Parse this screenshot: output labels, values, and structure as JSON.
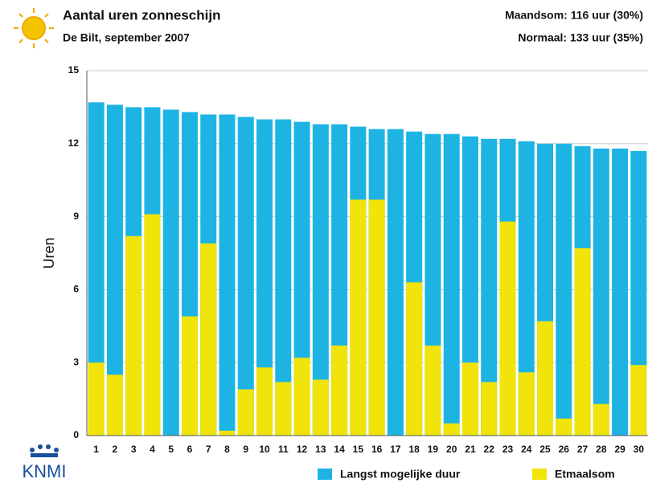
{
  "chart_data": {
    "type": "bar",
    "barmode": "overlay",
    "title": "Aantal uren zonneschijn",
    "subtitle": "De Bilt, september 2007",
    "annotations": [
      "Maandsom: 116 uur (30%)",
      "Normaal: 133 uur (35%)"
    ],
    "ylabel": "Uren",
    "logo": "KNMI",
    "categories": [
      "1",
      "2",
      "3",
      "4",
      "5",
      "6",
      "7",
      "8",
      "9",
      "10",
      "11",
      "12",
      "13",
      "14",
      "15",
      "16",
      "17",
      "18",
      "19",
      "20",
      "21",
      "22",
      "23",
      "24",
      "25",
      "26",
      "27",
      "28",
      "29",
      "30"
    ],
    "series": [
      {
        "name": "Langst mogelijke duur",
        "color": "#1db4e4",
        "values": [
          13.7,
          13.6,
          13.5,
          13.5,
          13.4,
          13.3,
          13.2,
          13.2,
          13.1,
          13.0,
          13.0,
          12.9,
          12.8,
          12.8,
          12.7,
          12.6,
          12.6,
          12.5,
          12.4,
          12.4,
          12.3,
          12.2,
          12.2,
          12.1,
          12.0,
          12.0,
          11.9,
          11.8,
          11.8,
          11.7
        ]
      },
      {
        "name": "Etmaalsom",
        "color": "#f0e40a",
        "values": [
          3.0,
          2.5,
          8.2,
          9.1,
          0,
          4.9,
          7.9,
          0.2,
          1.9,
          2.8,
          2.2,
          3.2,
          2.3,
          3.7,
          9.7,
          9.7,
          0,
          6.3,
          3.7,
          0.5,
          3.0,
          2.2,
          8.8,
          2.6,
          4.7,
          0.7,
          7.7,
          1.3,
          0,
          2.9
        ]
      }
    ],
    "ylim": [
      0,
      15
    ],
    "yticks": [
      0,
      3,
      6,
      9,
      12,
      15
    ],
    "grid": true
  }
}
